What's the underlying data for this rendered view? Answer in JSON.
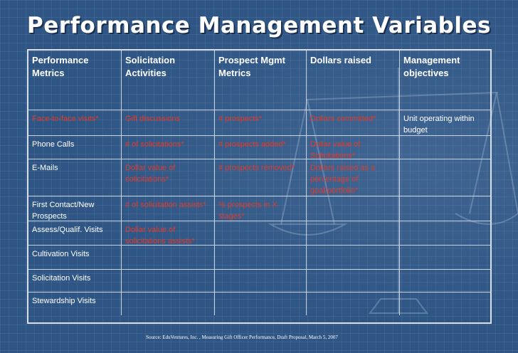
{
  "title": "Performance Management Variables",
  "colors": {
    "background": "#2e5584",
    "text": "#ffffff",
    "highlight": "#e23b2a",
    "grid": "#c9d3e0"
  },
  "table": {
    "headers": [
      "Performance Metrics",
      "Solicitation Activities",
      "Prospect Mgmt Metrics",
      "Dollars raised",
      "Management objectives"
    ],
    "rows": [
      [
        "Face-to-face visits*",
        "Gift discussions",
        "# prospects*",
        "Dollars committed*",
        "Unit operating within budget"
      ],
      [
        "Phone Calls",
        "# of solicitations*",
        "# prospects added*",
        "Dollar value of Solicitations*",
        ""
      ],
      [
        "E-Mails",
        "Dollar value of solicitations*",
        "# prospects removed*",
        "Dollars raised as a percentage of goal/portfolio*",
        ""
      ],
      [
        "First Contact/New Prospects",
        "# of solicitation assists*",
        "% prospects in X stages*",
        "",
        ""
      ],
      [
        "Assess/Qualif. Visits",
        "Dollar value of solicitations assists*",
        "",
        "",
        ""
      ],
      [
        "Cultivation Visits",
        "",
        "",
        "",
        ""
      ],
      [
        "Solicitation Visits",
        "",
        "",
        "",
        ""
      ],
      [
        "Stewardship Visits",
        "",
        "",
        "",
        ""
      ]
    ],
    "highlighted": [
      [
        true,
        true,
        true,
        true,
        false
      ],
      [
        false,
        true,
        true,
        true,
        false
      ],
      [
        false,
        true,
        true,
        true,
        false
      ],
      [
        false,
        true,
        true,
        false,
        false
      ],
      [
        false,
        true,
        false,
        false,
        false
      ],
      [
        false,
        false,
        false,
        false,
        false
      ],
      [
        false,
        false,
        false,
        false,
        false
      ],
      [
        false,
        false,
        false,
        false,
        false
      ]
    ]
  },
  "source": "Source: EduVentures, Inc. , Measuring Gift  Officer Performance, Draft Proposal, March 5, 2007"
}
